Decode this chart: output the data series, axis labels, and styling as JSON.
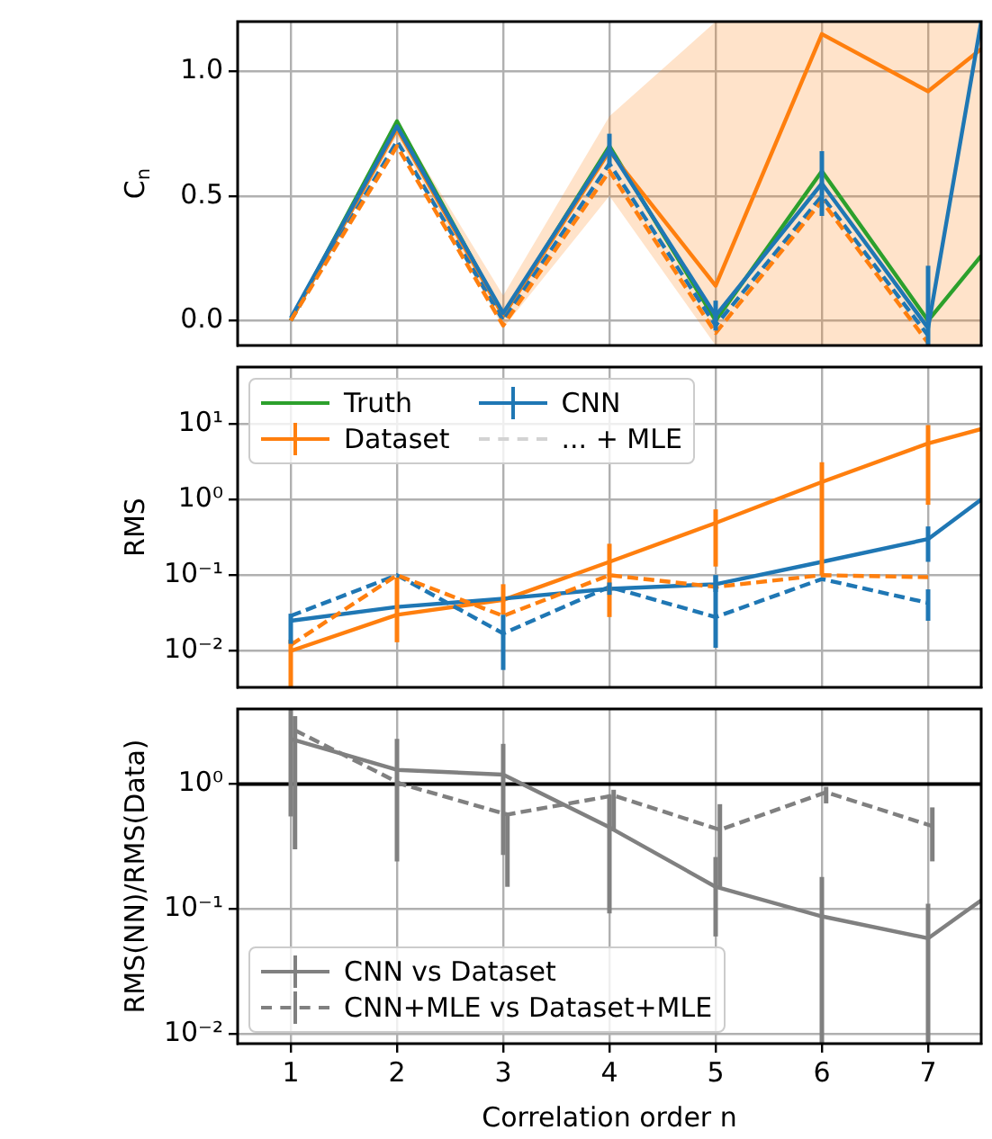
{
  "chart_data": [
    {
      "type": "line",
      "ylabel": "C$_{n}$",
      "x": [
        1,
        2,
        3,
        4,
        5,
        6,
        7
      ],
      "xlim": [
        0.5,
        7.5
      ],
      "xticks": [
        1,
        2,
        3,
        4,
        5,
        6,
        7
      ],
      "ylim": [
        -0.1,
        1.2
      ],
      "yticks": [
        {
          "value": 0,
          "label": "0.0"
        },
        0.5,
        {
          "value": 1,
          "label": "1.0"
        }
      ],
      "grid": true,
      "tick_labels": "y",
      "legend": false,
      "series": [
        {
          "color": "#2ca02c",
          "x": [
            1,
            2,
            3,
            4,
            5,
            6,
            7,
            7.5
          ],
          "values": [
            0,
            0.8,
            0.02,
            0.7,
            0,
            0.6,
            0,
            0.26
          ]
        },
        {
          "color": "#ff7f0e",
          "x": [
            1,
            2,
            3,
            4,
            5,
            6,
            7,
            7.5
          ],
          "values": [
            0,
            0.77,
            0.02,
            0.68,
            0.14,
            1.15,
            0.92,
            1.09
          ],
          "lower": [
            0,
            0.74,
            -0.03,
            0.5,
            -0.1,
            -0.1,
            -0.1,
            -0.1
          ],
          "upper": [
            0.02,
            0.8,
            0.1,
            0.82,
            1.2,
            1.2,
            1.2,
            1.2
          ]
        },
        {
          "color": "#1f77b4",
          "x": [
            1,
            2,
            3,
            4,
            5,
            6,
            7,
            7.5
          ],
          "values": [
            0.01,
            0.78,
            0.03,
            0.69,
            0.02,
            0.55,
            -0.03,
            1.2
          ],
          "errors": [
            null,
            null,
            null,
            0.06,
            0.06,
            0.13,
            [
              -0.1,
              0.22
            ],
            null
          ]
        },
        {
          "color": "#1f77b4",
          "line_style": "dashed",
          "values": [
            0,
            0.72,
            0,
            0.63,
            -0.02,
            0.5,
            -0.06
          ]
        },
        {
          "color": "#ff7f0e",
          "line_style": "dashed",
          "values": [
            0,
            0.7,
            -0.02,
            0.6,
            -0.05,
            0.48,
            -0.09
          ]
        }
      ]
    },
    {
      "type": "line",
      "ylabel": "RMS",
      "x": [
        1,
        2,
        3,
        4,
        5,
        6,
        7
      ],
      "xlim": [
        0.5,
        7.5
      ],
      "xticks": [
        1,
        2,
        3,
        4,
        5,
        6,
        7
      ],
      "ylim": [
        0.0033,
        56
      ],
      "yticks": [
        {
          "value": 0.01,
          "label": "10⁻²"
        },
        {
          "value": 0.1,
          "label": "10⁻¹"
        },
        {
          "value": 1,
          "label": "10⁰"
        },
        {
          "value": 10,
          "label": "10¹"
        }
      ],
      "log": true,
      "grid": true,
      "tick_labels": "y",
      "legend": "top left",
      "series": [
        {
          "name": "Truth",
          "color": "#2ca02c",
          "values": [
            null,
            null,
            null,
            null,
            null,
            null,
            null
          ]
        },
        {
          "name": "Dataset",
          "color": "#ff7f0e",
          "x": [
            1,
            2,
            3,
            4,
            5,
            6,
            7,
            7.5
          ],
          "values": [
            0.01,
            0.03,
            0.047,
            0.15,
            0.49,
            1.7,
            5.5,
            8.5
          ],
          "errors": [
            [
              0.0033,
              0.014
            ],
            [
              0.013,
              0.093
            ],
            [
              0.03,
              0.076
            ],
            [
              0.028,
              0.26
            ],
            [
              0.13,
              0.74
            ],
            [
              0.1,
              3.1
            ],
            [
              0.85,
              9.6
            ],
            null
          ]
        },
        {
          "name": "CNN",
          "color": "#1f77b4",
          "x": [
            1,
            2,
            3,
            4,
            5,
            6,
            7,
            7.5
          ],
          "values": [
            0.025,
            0.038,
            0.049,
            0.066,
            0.076,
            0.15,
            0.3,
            1.0
          ],
          "errors": [
            null,
            null,
            null,
            [
              0.055,
              0.08
            ],
            [
              0.06,
              0.1
            ],
            null,
            [
              0.15,
              0.44
            ],
            null
          ]
        },
        {
          "name": "... + MLE",
          "color": "#d3d3d3",
          "line_style": "dashed",
          "values": [
            null,
            null,
            null,
            null,
            null,
            null,
            null
          ]
        },
        {
          "color": "#1f77b4",
          "line_style": "dashed",
          "values": [
            0.029,
            0.1,
            0.017,
            0.07,
            0.028,
            0.089,
            0.043
          ],
          "errors": [
            [
              0.0124,
              0.031
            ],
            null,
            [
              0.0056,
              0.03
            ],
            null,
            [
              0.011,
              0.1
            ],
            null,
            [
              0.025,
              0.065
            ]
          ]
        },
        {
          "color": "#ff7f0e",
          "line_style": "dashed",
          "values": [
            0.012,
            0.1,
            0.029,
            0.1,
            0.07,
            0.1,
            0.094
          ]
        }
      ]
    },
    {
      "type": "line",
      "ylabel": "RMS(NN)/RMS(Data)",
      "xlabel": "Correlation order n",
      "xlim": [
        0.5,
        7.5
      ],
      "xticks": [
        1,
        2,
        3,
        4,
        5,
        6,
        7
      ],
      "ylim": [
        0.0083,
        4
      ],
      "yticks": [
        {
          "value": 0.01,
          "label": "10⁻²"
        },
        {
          "value": 0.1,
          "label": "10⁻¹"
        },
        {
          "value": 1,
          "label": "10⁰"
        }
      ],
      "log": true,
      "grid": true,
      "legend": "bottom left",
      "ref_lines": [
        {
          "axis": "y",
          "value": 1,
          "color": "#000000"
        }
      ],
      "series": [
        {
          "name": "CNN vs Dataset",
          "color": "#808080",
          "x": [
            1,
            2,
            3,
            4,
            5,
            6,
            7,
            7.5
          ],
          "values": [
            2.3,
            1.3,
            1.19,
            0.45,
            0.15,
            0.087,
            0.058,
            0.117
          ],
          "errors": [
            [
              0.55,
              4
            ],
            [
              0.24,
              2.3
            ],
            [
              0.27,
              2.1
            ],
            [
              0.092,
              0.82
            ],
            [
              0.06,
              0.26
            ],
            [
              0.0083,
              0.18
            ],
            [
              0.0083,
              0.11
            ],
            null
          ]
        },
        {
          "name": "CNN+MLE vs Dataset+MLE",
          "color": "#808080",
          "line_style": "dashed",
          "x": [
            1.04,
            2.04,
            3.04,
            4.04,
            5.04,
            6.04,
            7.04
          ],
          "values": [
            2.7,
            1.0,
            0.57,
            0.81,
            0.43,
            0.86,
            0.46
          ],
          "errors": [
            [
              0.3,
              3.5
            ],
            null,
            [
              0.15,
              0.59
            ],
            [
              0.42,
              0.9
            ],
            [
              0.15,
              0.69
            ],
            [
              0.7,
              0.95
            ],
            [
              0.24,
              0.65
            ]
          ]
        }
      ]
    }
  ]
}
